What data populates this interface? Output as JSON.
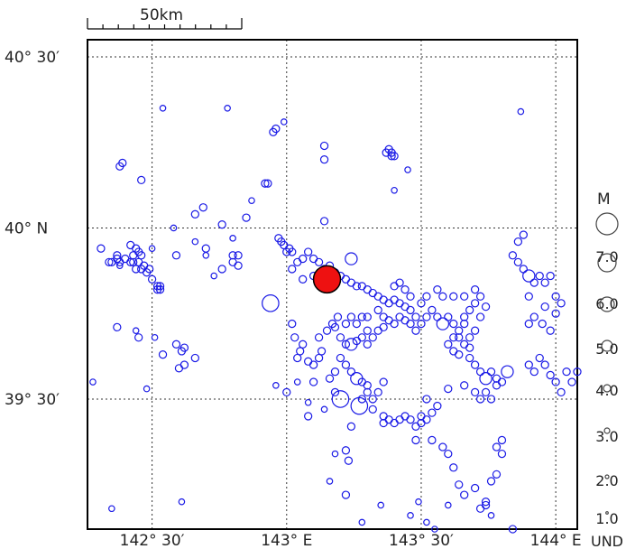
{
  "scale_bar": {
    "label": "50km"
  },
  "axes": {
    "lat_labels": [
      {
        "text": "40° 30′",
        "lat": 40.5
      },
      {
        "text": "40° N",
        "lat": 40.0
      },
      {
        "text": "39° 30′",
        "lat": 39.5
      }
    ],
    "lon_labels": [
      {
        "text": "142° 30′",
        "lon": 142.5
      },
      {
        "text": "143° E",
        "lon": 143.0
      },
      {
        "text": "143° 30′",
        "lon": 143.5
      },
      {
        "text": "144° E",
        "lon": 144.0
      }
    ],
    "lon_range": [
      142.26,
      144.08
    ],
    "lat_range": [
      39.12,
      40.55
    ]
  },
  "legend": {
    "title": "M",
    "items": [
      {
        "label": "7.0",
        "mag": 7
      },
      {
        "label": "6.0",
        "mag": 6
      },
      {
        "label": "5.0",
        "mag": 5
      },
      {
        "label": "4.0",
        "mag": 4
      },
      {
        "label": "3.0",
        "mag": 3
      },
      {
        "label": "2.0",
        "mag": 2
      },
      {
        "label": "1.0",
        "mag": 1
      },
      {
        "label": "UND",
        "mag": 0
      }
    ]
  },
  "colors": {
    "events": "#1a1ae6",
    "mainshock": "#ee1111",
    "grid": "#333333"
  },
  "mainshock": {
    "lon": 143.15,
    "lat": 39.85,
    "mag": 7.1
  },
  "events": [
    [
      142.39,
      40.19,
      3
    ],
    [
      142.38,
      40.18,
      3
    ],
    [
      142.46,
      40.14,
      3
    ],
    [
      142.58,
      40.0,
      2
    ],
    [
      142.66,
      40.04,
      3
    ],
    [
      142.69,
      40.06,
      3
    ],
    [
      142.76,
      40.01,
      3
    ],
    [
      142.8,
      39.97,
      2
    ],
    [
      142.85,
      40.03,
      3
    ],
    [
      142.95,
      40.28,
      3
    ],
    [
      142.96,
      40.29,
      3
    ],
    [
      142.99,
      40.31,
      2
    ],
    [
      142.92,
      40.13,
      3
    ],
    [
      142.93,
      40.13,
      3
    ],
    [
      142.87,
      40.08,
      2
    ],
    [
      143.14,
      40.24,
      3
    ],
    [
      143.14,
      40.2,
      3
    ],
    [
      143.37,
      40.22,
      3
    ],
    [
      143.39,
      40.21,
      3
    ],
    [
      143.39,
      40.22,
      3
    ],
    [
      143.4,
      40.21,
      3
    ],
    [
      143.38,
      40.23,
      3
    ],
    [
      143.45,
      40.17,
      2
    ],
    [
      143.4,
      40.11,
      2
    ],
    [
      143.14,
      40.02,
      3
    ],
    [
      142.78,
      40.35,
      2
    ],
    [
      142.54,
      40.35,
      2
    ],
    [
      143.87,
      40.34,
      2
    ],
    [
      142.31,
      39.94,
      3
    ],
    [
      142.34,
      39.9,
      3
    ],
    [
      142.35,
      39.9,
      3
    ],
    [
      142.37,
      39.91,
      3
    ],
    [
      142.38,
      39.9,
      3
    ],
    [
      142.38,
      39.89,
      2
    ],
    [
      142.4,
      39.91,
      3
    ],
    [
      142.42,
      39.9,
      3
    ],
    [
      142.43,
      39.9,
      3
    ],
    [
      142.45,
      39.9,
      3
    ],
    [
      142.47,
      39.89,
      3
    ],
    [
      142.49,
      39.88,
      3
    ],
    [
      142.42,
      39.95,
      3
    ],
    [
      142.44,
      39.94,
      3
    ],
    [
      142.45,
      39.93,
      3
    ],
    [
      142.46,
      39.92,
      3
    ],
    [
      142.43,
      39.92,
      3
    ],
    [
      142.37,
      39.92,
      3
    ],
    [
      142.44,
      39.88,
      3
    ],
    [
      142.46,
      39.88,
      3
    ],
    [
      142.48,
      39.87,
      3
    ],
    [
      142.5,
      39.85,
      3
    ],
    [
      142.52,
      39.83,
      3
    ],
    [
      142.52,
      39.82,
      3
    ],
    [
      142.53,
      39.83,
      3
    ],
    [
      142.53,
      39.82,
      3
    ],
    [
      142.2,
      39.95,
      2
    ],
    [
      142.2,
      39.85,
      2
    ],
    [
      142.5,
      39.94,
      2
    ],
    [
      142.59,
      39.92,
      3
    ],
    [
      142.7,
      39.94,
      3
    ],
    [
      142.7,
      39.92,
      2
    ],
    [
      142.66,
      39.96,
      2
    ],
    [
      142.73,
      39.86,
      2
    ],
    [
      142.76,
      39.88,
      3
    ],
    [
      142.8,
      39.92,
      3
    ],
    [
      142.82,
      39.92,
      3
    ],
    [
      142.8,
      39.9,
      3
    ],
    [
      142.82,
      39.89,
      3
    ],
    [
      142.97,
      39.97,
      3
    ],
    [
      142.98,
      39.96,
      3
    ],
    [
      142.99,
      39.95,
      3
    ],
    [
      143.01,
      39.94,
      3
    ],
    [
      143.0,
      39.93,
      3
    ],
    [
      143.02,
      39.93,
      3
    ],
    [
      143.04,
      39.9,
      3
    ],
    [
      143.06,
      39.91,
      3
    ],
    [
      143.08,
      39.93,
      3
    ],
    [
      143.1,
      39.91,
      3
    ],
    [
      143.12,
      39.9,
      3
    ],
    [
      143.14,
      39.88,
      3
    ],
    [
      143.16,
      39.89,
      3
    ],
    [
      143.18,
      39.87,
      3
    ],
    [
      143.2,
      39.86,
      3
    ],
    [
      143.22,
      39.85,
      3
    ],
    [
      143.24,
      39.84,
      3
    ],
    [
      143.26,
      39.83,
      3
    ],
    [
      143.28,
      39.83,
      3
    ],
    [
      143.3,
      39.82,
      3
    ],
    [
      143.32,
      39.81,
      3
    ],
    [
      143.34,
      39.8,
      3
    ],
    [
      143.36,
      39.79,
      3
    ],
    [
      143.38,
      39.78,
      3
    ],
    [
      143.4,
      39.79,
      3
    ],
    [
      143.42,
      39.78,
      3
    ],
    [
      143.44,
      39.77,
      3
    ],
    [
      143.46,
      39.76,
      3
    ],
    [
      143.48,
      39.74,
      3
    ],
    [
      143.24,
      39.91,
      4
    ],
    [
      143.02,
      39.88,
      3
    ],
    [
      143.06,
      39.85,
      3
    ],
    [
      143.1,
      39.86,
      3
    ],
    [
      142.94,
      39.78,
      5
    ],
    [
      143.02,
      39.72,
      3
    ],
    [
      143.03,
      39.68,
      3
    ],
    [
      143.06,
      39.66,
      3
    ],
    [
      143.05,
      39.64,
      3
    ],
    [
      143.04,
      39.62,
      3
    ],
    [
      143.08,
      39.61,
      3
    ],
    [
      143.1,
      39.6,
      3
    ],
    [
      143.12,
      39.62,
      3
    ],
    [
      143.13,
      39.64,
      3
    ],
    [
      143.12,
      39.68,
      3
    ],
    [
      143.15,
      39.7,
      3
    ],
    [
      143.17,
      39.72,
      3
    ],
    [
      143.19,
      39.74,
      3
    ],
    [
      143.18,
      39.71,
      3
    ],
    [
      143.2,
      39.68,
      3
    ],
    [
      143.22,
      39.66,
      3
    ],
    [
      143.24,
      39.66,
      4
    ],
    [
      143.26,
      39.67,
      3
    ],
    [
      143.28,
      39.68,
      3
    ],
    [
      143.3,
      39.66,
      3
    ],
    [
      143.32,
      39.68,
      3
    ],
    [
      143.34,
      39.7,
      3
    ],
    [
      143.3,
      39.7,
      3
    ],
    [
      143.26,
      39.72,
      3
    ],
    [
      143.22,
      39.72,
      3
    ],
    [
      143.24,
      39.74,
      3
    ],
    [
      143.28,
      39.74,
      3
    ],
    [
      143.3,
      39.74,
      3
    ],
    [
      143.2,
      39.62,
      3
    ],
    [
      143.22,
      39.6,
      3
    ],
    [
      143.24,
      39.58,
      3
    ],
    [
      143.26,
      39.56,
      4
    ],
    [
      143.28,
      39.55,
      3
    ],
    [
      143.3,
      39.54,
      3
    ],
    [
      143.3,
      39.52,
      3
    ],
    [
      143.32,
      39.5,
      3
    ],
    [
      143.34,
      39.52,
      3
    ],
    [
      143.36,
      39.55,
      3
    ],
    [
      143.28,
      39.5,
      3
    ],
    [
      143.18,
      39.52,
      3
    ],
    [
      143.16,
      39.56,
      3
    ],
    [
      143.18,
      39.58,
      3
    ],
    [
      143.1,
      39.55,
      3
    ],
    [
      143.08,
      39.45,
      3
    ],
    [
      143.2,
      39.5,
      5
    ],
    [
      143.27,
      39.48,
      5
    ],
    [
      143.24,
      39.42,
      3
    ],
    [
      143.22,
      39.35,
      3
    ],
    [
      143.23,
      39.32,
      3
    ],
    [
      143.18,
      39.34,
      2
    ],
    [
      143.34,
      39.76,
      3
    ],
    [
      143.36,
      39.74,
      3
    ],
    [
      143.38,
      39.73,
      3
    ],
    [
      143.36,
      39.71,
      3
    ],
    [
      143.4,
      39.72,
      3
    ],
    [
      143.42,
      39.74,
      3
    ],
    [
      143.44,
      39.73,
      3
    ],
    [
      143.46,
      39.72,
      3
    ],
    [
      143.48,
      39.7,
      3
    ],
    [
      143.5,
      39.72,
      3
    ],
    [
      143.52,
      39.74,
      3
    ],
    [
      143.54,
      39.76,
      3
    ],
    [
      143.56,
      39.74,
      3
    ],
    [
      143.58,
      39.72,
      4
    ],
    [
      143.6,
      39.74,
      3
    ],
    [
      143.62,
      39.72,
      3
    ],
    [
      143.64,
      39.7,
      3
    ],
    [
      143.66,
      39.72,
      3
    ],
    [
      143.62,
      39.68,
      3
    ],
    [
      143.6,
      39.66,
      3
    ],
    [
      143.62,
      39.64,
      3
    ],
    [
      143.64,
      39.68,
      3
    ],
    [
      143.66,
      39.66,
      3
    ],
    [
      143.68,
      39.68,
      3
    ],
    [
      143.7,
      39.7,
      3
    ],
    [
      143.72,
      39.74,
      3
    ],
    [
      143.74,
      39.77,
      3
    ],
    [
      143.66,
      39.74,
      3
    ],
    [
      143.68,
      39.76,
      3
    ],
    [
      143.7,
      39.78,
      3
    ],
    [
      143.72,
      39.8,
      3
    ],
    [
      143.7,
      39.82,
      3
    ],
    [
      143.66,
      39.8,
      3
    ],
    [
      143.62,
      39.8,
      3
    ],
    [
      143.58,
      39.8,
      3
    ],
    [
      143.56,
      39.82,
      3
    ],
    [
      143.52,
      39.8,
      3
    ],
    [
      143.5,
      39.78,
      3
    ],
    [
      143.46,
      39.8,
      3
    ],
    [
      143.44,
      39.82,
      3
    ],
    [
      143.42,
      39.84,
      3
    ],
    [
      143.4,
      39.83,
      3
    ],
    [
      143.64,
      39.63,
      3
    ],
    [
      143.68,
      39.65,
      3
    ],
    [
      143.7,
      39.6,
      3
    ],
    [
      143.72,
      39.58,
      3
    ],
    [
      143.74,
      39.56,
      4
    ],
    [
      143.76,
      39.58,
      3
    ],
    [
      143.78,
      39.56,
      3
    ],
    [
      143.78,
      39.54,
      3
    ],
    [
      143.8,
      39.55,
      3
    ],
    [
      143.82,
      39.58,
      4
    ],
    [
      143.74,
      39.52,
      3
    ],
    [
      143.7,
      39.52,
      3
    ],
    [
      143.72,
      39.5,
      3
    ],
    [
      143.66,
      39.54,
      3
    ],
    [
      143.6,
      39.53,
      3
    ],
    [
      143.76,
      39.5,
      3
    ],
    [
      143.68,
      39.62,
      3
    ],
    [
      143.84,
      39.92,
      3
    ],
    [
      143.86,
      39.9,
      3
    ],
    [
      143.88,
      39.88,
      3
    ],
    [
      143.9,
      39.86,
      4
    ],
    [
      143.92,
      39.84,
      3
    ],
    [
      143.9,
      39.8,
      3
    ],
    [
      143.94,
      39.86,
      3
    ],
    [
      143.96,
      39.84,
      3
    ],
    [
      143.98,
      39.86,
      3
    ],
    [
      144.0,
      39.8,
      3
    ],
    [
      144.02,
      39.78,
      3
    ],
    [
      144.0,
      39.75,
      3
    ],
    [
      143.96,
      39.77,
      3
    ],
    [
      143.92,
      39.74,
      3
    ],
    [
      143.9,
      39.72,
      3
    ],
    [
      143.95,
      39.72,
      3
    ],
    [
      143.98,
      39.7,
      3
    ],
    [
      143.88,
      39.98,
      3
    ],
    [
      143.86,
      39.96,
      3
    ],
    [
      143.94,
      39.62,
      3
    ],
    [
      143.96,
      39.6,
      3
    ],
    [
      143.98,
      39.57,
      3
    ],
    [
      144.0,
      39.55,
      3
    ],
    [
      144.02,
      39.52,
      3
    ],
    [
      144.06,
      39.55,
      3
    ],
    [
      144.04,
      39.58,
      3
    ],
    [
      144.08,
      39.58,
      3
    ],
    [
      143.9,
      39.6,
      3
    ],
    [
      143.92,
      39.58,
      3
    ],
    [
      143.32,
      39.47,
      3
    ],
    [
      143.36,
      39.45,
      3
    ],
    [
      143.38,
      39.44,
      3
    ],
    [
      143.36,
      39.43,
      3
    ],
    [
      143.4,
      39.43,
      3
    ],
    [
      143.42,
      39.44,
      3
    ],
    [
      143.44,
      39.45,
      3
    ],
    [
      143.46,
      39.44,
      3
    ],
    [
      143.48,
      39.42,
      3
    ],
    [
      143.5,
      39.43,
      3
    ],
    [
      143.5,
      39.45,
      3
    ],
    [
      143.52,
      39.44,
      3
    ],
    [
      143.54,
      39.46,
      3
    ],
    [
      143.56,
      39.48,
      3
    ],
    [
      143.52,
      39.5,
      3
    ],
    [
      143.48,
      39.38,
      3
    ],
    [
      143.54,
      39.38,
      3
    ],
    [
      143.58,
      39.36,
      3
    ],
    [
      143.6,
      39.34,
      3
    ],
    [
      143.62,
      39.3,
      3
    ],
    [
      143.64,
      39.25,
      3
    ],
    [
      143.66,
      39.22,
      3
    ],
    [
      143.78,
      39.36,
      3
    ],
    [
      143.8,
      39.38,
      3
    ],
    [
      143.8,
      39.34,
      3
    ],
    [
      143.78,
      39.28,
      3
    ],
    [
      143.76,
      39.26,
      3
    ],
    [
      143.74,
      39.2,
      3
    ],
    [
      143.72,
      39.18,
      3
    ],
    [
      143.74,
      39.19,
      3
    ],
    [
      143.6,
      39.19,
      2
    ],
    [
      143.52,
      39.14,
      2
    ],
    [
      143.46,
      39.16,
      2
    ],
    [
      143.76,
      39.16,
      2
    ],
    [
      143.84,
      39.12,
      3
    ],
    [
      143.7,
      39.1,
      2
    ],
    [
      143.62,
      39.1,
      2
    ],
    [
      142.28,
      39.55,
      2
    ],
    [
      142.37,
      39.71,
      3
    ],
    [
      142.44,
      39.7,
      2
    ],
    [
      142.45,
      39.68,
      3
    ],
    [
      142.59,
      39.66,
      3
    ],
    [
      142.61,
      39.64,
      3
    ],
    [
      142.62,
      39.65,
      3
    ],
    [
      142.66,
      39.62,
      3
    ],
    [
      142.62,
      39.6,
      3
    ],
    [
      142.6,
      39.59,
      3
    ],
    [
      142.54,
      39.63,
      3
    ],
    [
      142.51,
      39.68,
      2
    ],
    [
      142.48,
      39.53,
      2
    ],
    [
      142.35,
      39.18,
      2
    ],
    [
      142.61,
      39.2,
      2
    ],
    [
      142.96,
      39.54,
      2
    ],
    [
      143.08,
      39.49,
      2
    ],
    [
      143.14,
      39.47,
      2
    ],
    [
      143.0,
      39.52,
      3
    ],
    [
      143.04,
      39.55,
      2
    ],
    [
      143.16,
      39.26,
      2
    ],
    [
      143.22,
      39.22,
      3
    ],
    [
      143.28,
      39.14,
      2
    ],
    [
      143.35,
      39.19,
      2
    ],
    [
      143.55,
      39.12,
      2
    ],
    [
      143.49,
      39.2,
      2
    ],
    [
      143.7,
      39.24,
      3
    ]
  ]
}
